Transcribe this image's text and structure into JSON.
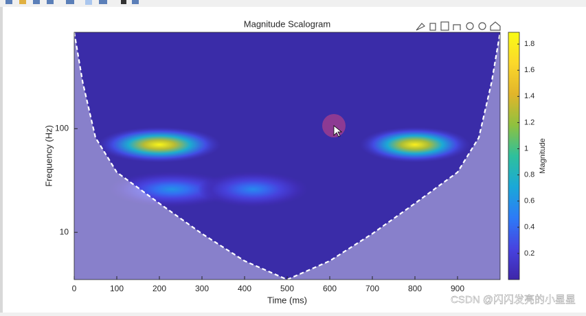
{
  "chart_data": {
    "type": "scalogram",
    "title": "Magnitude Scalogram",
    "x_label": "Time (ms)",
    "y_label": "Frequency (Hz)",
    "xlim": [
      0,
      1000
    ],
    "xticks": [
      0,
      100,
      200,
      300,
      400,
      500,
      600,
      700,
      800,
      900
    ],
    "ylim": [
      3.5,
      850
    ],
    "yticks": [
      10,
      100
    ],
    "y_log": true,
    "blobs": [
      {
        "time": 200,
        "frequency": 70,
        "magnitude": 1.85,
        "width": 290
      },
      {
        "time": 800,
        "frequency": 70,
        "magnitude": 1.8,
        "width": 260
      },
      {
        "time": 230,
        "frequency": 26,
        "magnitude": 0.6,
        "width": 300
      },
      {
        "time": 420,
        "frequency": 26,
        "magnitude": 0.55,
        "width": 260
      }
    ],
    "coi": {
      "x": [
        0,
        20,
        50,
        100,
        200,
        300,
        400,
        500,
        600,
        700,
        800,
        900,
        950,
        980,
        1000
      ],
      "y": [
        850,
        280,
        82,
        38,
        19,
        9.7,
        5.3,
        3.5,
        5.3,
        9.7,
        19,
        38,
        82,
        280,
        850
      ]
    },
    "colorbar": {
      "label": "Magnitude",
      "clim": [
        0,
        1.89
      ],
      "ticks": [
        0.2,
        0.4,
        0.6,
        0.8,
        1,
        1.2,
        1.4,
        1.6,
        1.8
      ],
      "colormap": [
        "#3e26a8",
        "#4743e0",
        "#2d7bf7",
        "#1aa8d8",
        "#2ec09c",
        "#8fc13f",
        "#e2b52a",
        "#fbd82a",
        "#f9fb15"
      ]
    }
  },
  "watermark": "CSDN @闪闪发亮的小星星"
}
